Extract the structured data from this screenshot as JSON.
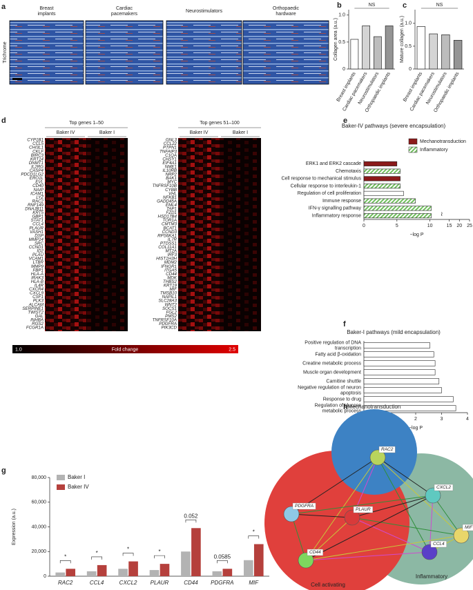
{
  "panel_labels": [
    "a",
    "b",
    "c",
    "d",
    "e",
    "f",
    "g",
    "h"
  ],
  "panel_a": {
    "stain_label": "Trichrome",
    "images": [
      "Breast\nimplants",
      "Cardiac\npacemakers",
      "Neurostimulators",
      "Orthopaedic\nhardware"
    ]
  },
  "panel_d": {
    "left": {
      "title": "Top genes 1–50",
      "groups": [
        "Baker IV",
        "Baker I"
      ],
      "genes": [
        "CYP1B1",
        "CCL5",
        "CHI3L1",
        "CKLF",
        "BIRC3",
        "KRT14",
        "DNMT1",
        "IL2RG",
        "CASP4",
        "PDCD1LG2",
        "ERO1L",
        "EVL",
        "CD40",
        "NAIP",
        "ICAM1",
        "LYZ",
        "RAC2",
        "RNF149",
        "DNAJB11",
        "KRT5",
        "GBP1",
        "STAT1",
        "CCL4",
        "PLAUR",
        "VASH1",
        "DSP",
        "MMP14",
        "SRC",
        "CCND1",
        "ID2",
        "PLAU",
        "VCAM1",
        "LTBR",
        "MMP9",
        "FBP1",
        "HLA-A",
        "IRAK3",
        "HLA-B",
        "IL4R",
        "CXCR4",
        "CXCL9",
        "CSF1",
        "PLK3",
        "ALCAM",
        "SERPINE1",
        "TWIST2",
        "GAL",
        "INHBA",
        "RGS2",
        "FCGR1A"
      ]
    },
    "right": {
      "title": "Top genes 51–100",
      "groups": [
        "Baker IV",
        "Baker I"
      ],
      "genes": [
        "GNL3",
        "CCL22",
        "PTPN1",
        "TNFAIP3",
        "C1QA",
        "CHSY1",
        "EIF4A1",
        "NME1",
        "IL10RB",
        "NRP2",
        "BAK1",
        "MYC",
        "TNFRSF10B",
        "CYBB",
        "VHL",
        "NFKB1",
        "GADD45A",
        "EML4",
        "TAP1",
        "FZD1",
        "HSD17B4",
        "TOR1A",
        "CMTM3",
        "BCAT1",
        "CCND3",
        "RPS6KA1",
        "IL7R",
        "PTDSS1",
        "COL11A1",
        "MT2A",
        "IRF3",
        "HIST1H3H",
        "MDM2",
        "IFNGR1",
        "ITGA5",
        "CD44",
        "MDK",
        "THBS2",
        "KRT19",
        "MIF",
        "TMSB10",
        "NAPIL1",
        "SLC28A3",
        "WNT2",
        "SOCS1",
        "FGL2",
        "PMS2",
        "TNFRSF10A",
        "PDGFRA",
        "PIK3CD"
      ]
    },
    "colorbar": {
      "label": "Fold change",
      "ticks": [
        {
          "value": 1,
          "label": "1.0"
        },
        2.5
      ]
    }
  },
  "chart_data": [
    {
      "type": "bar",
      "ylabel": "Collagen area (a.u.)",
      "annotation": "NS",
      "categories": [
        "Breast implants",
        "Cardiac pacemakers",
        "Neurostimulators",
        "Orthopaedic implants"
      ],
      "values": [
        0.55,
        0.8,
        0.6,
        0.8
      ],
      "colors": [
        "#ffffff",
        "#d4d4d4",
        "#bdbdbd",
        "#959595"
      ],
      "ylim": [
        0,
        1.1
      ],
      "yticks": [
        0,
        0.5,
        {
          "value": 1,
          "label": "1.0"
        }
      ]
    },
    {
      "type": "bar",
      "ylabel": "Mature collagen (a.u.)",
      "annotation": "NS",
      "categories": [
        "Breast implants",
        "Cardiac pacemakers",
        "Neurostimulators",
        "Orthopaedic implants"
      ],
      "values": [
        0.93,
        0.77,
        0.75,
        0.63
      ],
      "colors": [
        "#ffffff",
        "#d4d4d4",
        "#bdbdbd",
        "#959595"
      ],
      "ylim": [
        0,
        1.3
      ],
      "yticks": [
        0,
        0.5,
        {
          "value": 1,
          "label": "1.0"
        }
      ]
    },
    {
      "type": "barh",
      "title": "Baker-IV pathways (severe encapsulation)",
      "xlabel": "−log P",
      "categories": [
        "ERK1 and ERK2 cascade",
        "Chemotaxis",
        "Cell response to mechanical stimulus",
        "Cellular response to interleukin-1",
        "Regulation of cell proliferation",
        "Immune response",
        "IFN-γ signalling pathway",
        "Inflammatory response"
      ],
      "values": [
        5,
        5.5,
        5.5,
        5.5,
        6,
        7.8,
        10.2,
        10.2
      ],
      "legend": [
        {
          "name": "Mechanotransduction",
          "color": "#8b1a1a"
        },
        {
          "name": "Inflammatory",
          "color": "#7cc36a",
          "pattern": "hatch"
        }
      ],
      "bar_legend_index": [
        0,
        1,
        0,
        1,
        null,
        1,
        1,
        1
      ],
      "color": "#ffffff",
      "xlim": [
        0,
        25
      ],
      "xticks": [
        0,
        5,
        10,
        15,
        20,
        25
      ],
      "axis_break": 12
    },
    {
      "type": "barh",
      "title": "Baker-I pathways (mild encapsulation)",
      "xlabel": "−log P",
      "categories": [
        "Positive regulation of DNA\ntranscription",
        "Fatty acid β-oxidation",
        "Creatine metabolic process",
        "Muscle organ development",
        "Carnitine shuttle",
        "Negative regulation of neuron\napoptosis",
        "Response to drug",
        "Regulation of glucose\nmetabolic process"
      ],
      "values": [
        2.55,
        2.7,
        2.75,
        2.75,
        2.9,
        3.0,
        3.45,
        3.55
      ],
      "color": "#ffffff",
      "xlim": [
        0,
        4
      ],
      "xticks": [
        0,
        1,
        2,
        3,
        4
      ]
    },
    {
      "type": "grouped_bar",
      "ylabel": "Expression (a.u.)",
      "categories": [
        "RAC2",
        "CCL4",
        "CXCL2",
        "PLAUR",
        "CD44",
        "PDGFRA",
        "MIF"
      ],
      "series": [
        {
          "name": "Baker I",
          "color": "#b3b3b3",
          "values": [
            3000,
            4000,
            6000,
            5000,
            20000,
            4000,
            13000
          ]
        },
        {
          "name": "Baker IV",
          "color": "#b5403c",
          "values": [
            6000,
            9000,
            12000,
            10000,
            39000,
            6000,
            26000
          ]
        }
      ],
      "annotations": [
        "*",
        "*",
        "*",
        "*",
        "0.052",
        "0.0585",
        "*"
      ],
      "ylim": [
        0,
        80000
      ],
      "yticks": [
        0,
        {
          "value": 20000,
          "label": "20,000"
        },
        {
          "value": 40000,
          "label": "40,000"
        },
        {
          "value": 60000,
          "label": "60,000"
        },
        {
          "value": 80000,
          "label": "80,000"
        }
      ]
    }
  ],
  "panel_h": {
    "clusters": [
      "Mechanotransduction",
      "Cell activating",
      "Inflammatory"
    ],
    "nodes": [
      "RAC2",
      "CXCL2",
      "MIF",
      "CCL4",
      "PLAUR",
      "PDGFRA",
      "CD44"
    ]
  }
}
